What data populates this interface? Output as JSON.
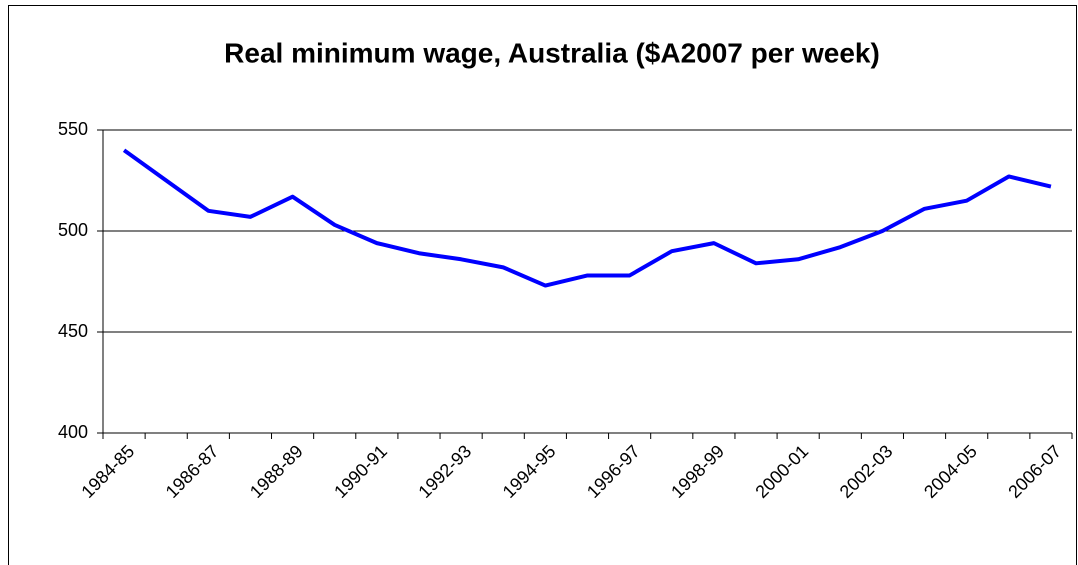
{
  "chart_data": {
    "type": "line",
    "title": "Real minimum wage, Australia ($A2007 per week)",
    "categories": [
      "1984-85",
      null,
      "1986-87",
      null,
      "1988-89",
      null,
      "1990-91",
      null,
      "1992-93",
      null,
      "1994-95",
      null,
      "1996-97",
      null,
      "1998-99",
      null,
      "2000-01",
      null,
      "2002-03",
      null,
      "2004-05",
      null,
      "2006-07"
    ],
    "values": [
      540,
      525,
      510,
      507,
      517,
      503,
      494,
      489,
      486,
      482,
      473,
      478,
      478,
      490,
      494,
      484,
      486,
      492,
      500,
      511,
      515,
      527,
      522
    ],
    "color": "#0000ff",
    "ylim": [
      400,
      550
    ],
    "yticks": [
      400,
      450,
      500,
      550
    ],
    "grid": true
  }
}
